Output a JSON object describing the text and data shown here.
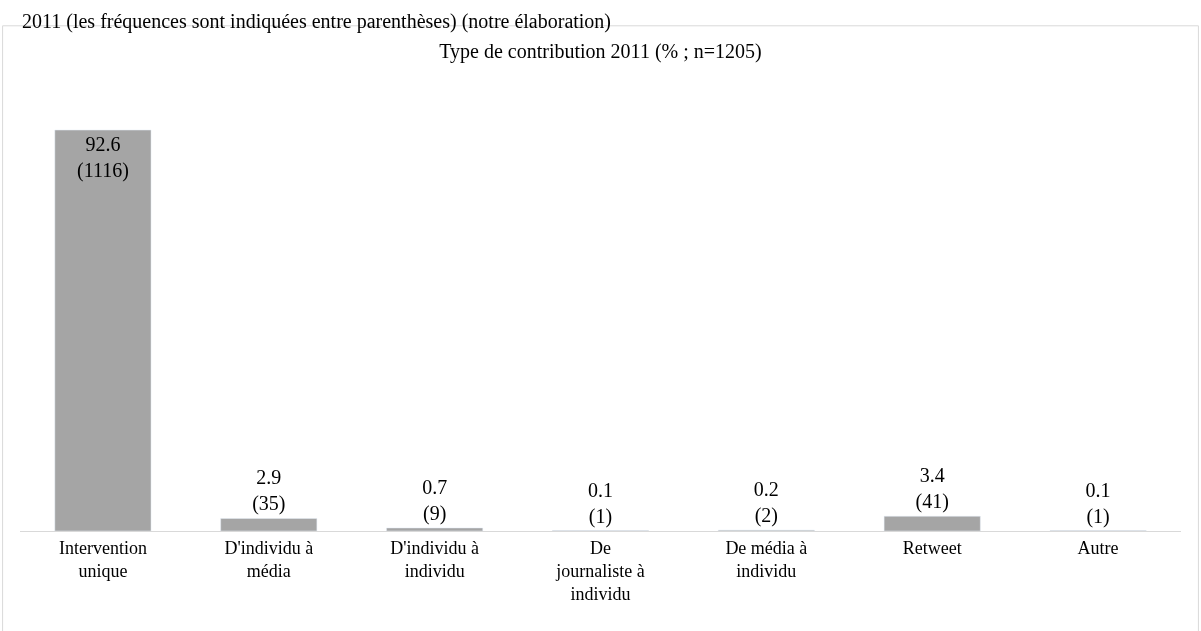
{
  "chart_data": {
    "type": "bar",
    "title": "Type de contribution 2011 (% ; n=1205)",
    "annotations": [
      "2011 (les fréquences sont indiquées entre parenthèses) (notre élaboration)"
    ],
    "categories": [
      "Intervention unique",
      "D'individu à média",
      "D'individu à individu",
      "De journaliste à individu",
      "De média à individu",
      "Retweet",
      "Autre"
    ],
    "values": [
      92.6,
      2.9,
      0.7,
      0.1,
      0.2,
      3.4,
      0.1
    ],
    "value_labels": [
      "92.6\n(1116)",
      "2.9\n(35)",
      "0.7\n(9)",
      "0.1\n(1)",
      "0.2\n(2)",
      "3.4\n(41)",
      "0.1\n(1)"
    ],
    "color": "#a5a5a5"
  }
}
